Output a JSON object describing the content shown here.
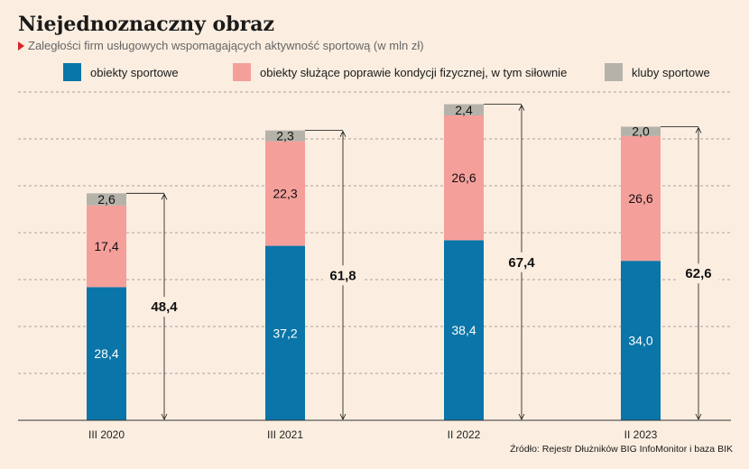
{
  "title": "Niejednoznaczny obraz",
  "subtitle": "Zaległości firm usługowych wspomagających aktywność sportową (w mln zł)",
  "source": "Źródło: Rejestr Dłużników BIG InfoMonitor i baza BIK",
  "colors": {
    "obiekty_sportowe": "#0a75a8",
    "kondycja": "#f59f9b",
    "kluby": "#b5b2aa",
    "background": "#fbeee0",
    "accent": "#d8262c"
  },
  "legend": [
    {
      "label": "obiekty sportowe",
      "color": "#0a75a8"
    },
    {
      "label": "obiekty służące poprawie kondycji fizycznej, w tym siłownie",
      "color": "#f59f9b"
    },
    {
      "label": "kluby sportowe",
      "color": "#b5b2aa"
    }
  ],
  "chart_data": {
    "type": "bar",
    "stacked": true,
    "categories": [
      "III 2020",
      "III 2021",
      "II 2022",
      "II 2023"
    ],
    "series": [
      {
        "name": "obiekty sportowe",
        "values": [
          28.4,
          37.2,
          38.4,
          34.0
        ],
        "labels": [
          "28,4",
          "37,2",
          "38,4",
          "34,0"
        ],
        "color": "#0a75a8",
        "label_color": "#ffffff"
      },
      {
        "name": "obiekty służące poprawie kondycji fizycznej, w tym siłownie",
        "values": [
          17.4,
          22.3,
          26.6,
          26.6
        ],
        "labels": [
          "17,4",
          "22,3",
          "26,6",
          "26,6"
        ],
        "color": "#f59f9b",
        "label_color": "#111111"
      },
      {
        "name": "kluby sportowe",
        "values": [
          2.6,
          2.3,
          2.4,
          2.0
        ],
        "labels": [
          "2,6",
          "2,3",
          "2,4",
          "2,0"
        ],
        "color": "#b5b2aa",
        "label_color": "#111111"
      }
    ],
    "totals": [
      48.4,
      61.8,
      67.4,
      62.6
    ],
    "total_labels": [
      "48,4",
      "61,8",
      "67,4",
      "62,6"
    ],
    "ylim": [
      0,
      70
    ],
    "grid": true
  }
}
